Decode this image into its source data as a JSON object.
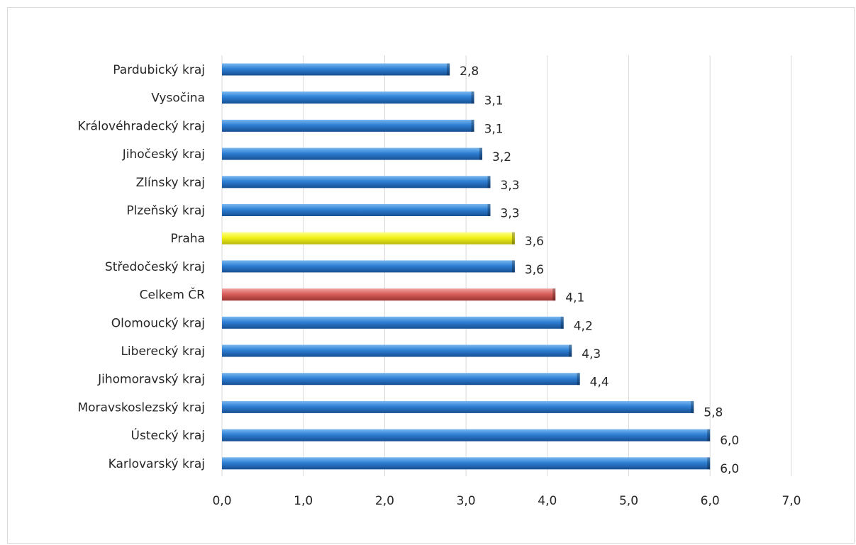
{
  "chart_data": {
    "type": "bar",
    "orientation": "horizontal",
    "title": "",
    "xlabel": "",
    "ylabel": "",
    "xlim": [
      0,
      7
    ],
    "ticks": [
      "0,0",
      "1,0",
      "2,0",
      "3,0",
      "4,0",
      "5,0",
      "6,0",
      "7,0"
    ],
    "grid": true,
    "categories": [
      "Pardubický kraj",
      "Vysočina",
      "Královéhradecký kraj",
      "Jihočeský kraj",
      "Zlínsky kraj",
      "Plzeňský kraj",
      "Praha",
      "Středočeský kraj",
      "Celkem ČR",
      "Olomoucký kraj",
      "Liberecký kraj",
      "Jihomoravský kraj",
      "Moravskoslezský kraj",
      "Ústecký kraj",
      "Karlovarský kraj"
    ],
    "values": [
      2.8,
      3.1,
      3.1,
      3.2,
      3.3,
      3.3,
      3.6,
      3.6,
      4.1,
      4.2,
      4.3,
      4.4,
      5.8,
      6.0,
      6.0
    ],
    "value_labels": [
      "2,8",
      "3,1",
      "3,1",
      "3,2",
      "3,3",
      "3,3",
      "3,6",
      "3,6",
      "4,1",
      "4,2",
      "4,3",
      "4,4",
      "5,8",
      "6,0",
      "6,0"
    ],
    "colors": [
      "blue",
      "blue",
      "blue",
      "blue",
      "blue",
      "blue",
      "yellow",
      "blue",
      "red",
      "blue",
      "blue",
      "blue",
      "blue",
      "blue",
      "blue"
    ],
    "palette": {
      "blue": "#2e7fd4",
      "yellow": "#f2f21a",
      "red": "#d9605c"
    }
  }
}
